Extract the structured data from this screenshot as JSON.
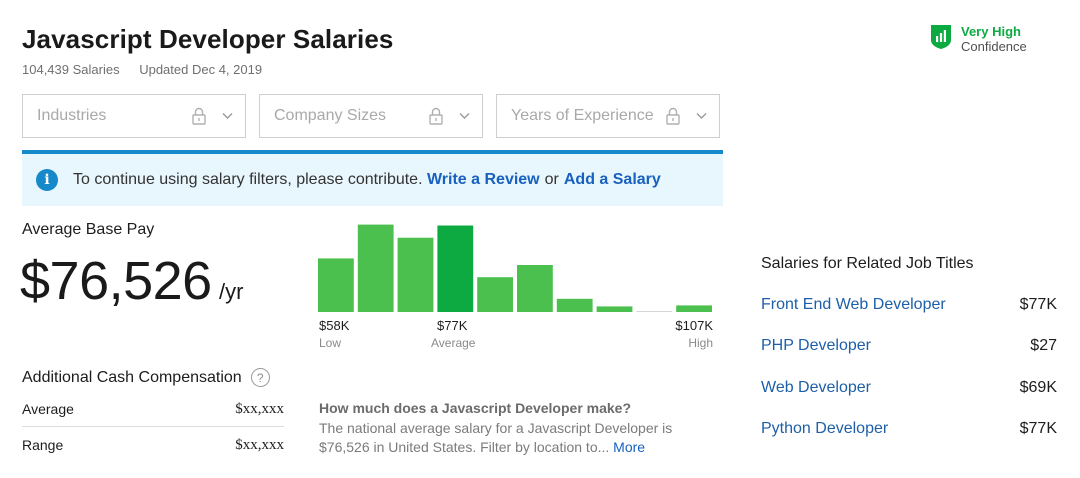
{
  "header": {
    "title": "Javascript Developer Salaries",
    "salary_count": "104,439 Salaries",
    "updated": "Updated Dec 4, 2019"
  },
  "confidence": {
    "level": "Very High",
    "word": "Confidence",
    "icon": "shield-bar-chart-icon",
    "color": "#0caa41"
  },
  "filters": [
    {
      "label": "Industries"
    },
    {
      "label": "Company Sizes"
    },
    {
      "label": "Years of Experience"
    }
  ],
  "notice": {
    "text": "To continue using salary filters, please contribute.",
    "link1": "Write a Review",
    "or": "or",
    "link2": "Add a Salary",
    "accent": "#1589c9"
  },
  "base_pay": {
    "label": "Average Base Pay",
    "value": "$76,526",
    "unit": "/yr"
  },
  "histogram": {
    "bin_heights_pct": [
      57,
      93,
      79,
      92,
      37,
      50,
      14,
      6,
      1,
      7
    ],
    "highlight_bin": 3,
    "bar_color": "#4bc04e",
    "highlight_color": "#0caa41",
    "empty_color": "#d6d6d6",
    "ticks": [
      {
        "value": "$58K",
        "sub": "Low"
      },
      {
        "value": "$77K",
        "sub": "Average"
      },
      {
        "value": "$107K",
        "sub": "High"
      }
    ]
  },
  "additional_cash": {
    "title": "Additional Cash Compensation",
    "rows": [
      {
        "label": "Average",
        "value": "$xx,xxx"
      },
      {
        "label": "Range",
        "value": "$xx,xxx"
      }
    ]
  },
  "faq": {
    "question": "How much does a Javascript Developer make?",
    "answer": "The national average salary for a Javascript Developer is $76,526 in United States. Filter by location to...",
    "more": "More"
  },
  "related": {
    "title": "Salaries for Related Job Titles",
    "items": [
      {
        "title": "Front End Web Developer",
        "salary": "$77K"
      },
      {
        "title": "PHP Developer",
        "salary": "$27"
      },
      {
        "title": "Web Developer",
        "salary": "$69K"
      },
      {
        "title": "Python Developer",
        "salary": "$77K"
      }
    ]
  }
}
